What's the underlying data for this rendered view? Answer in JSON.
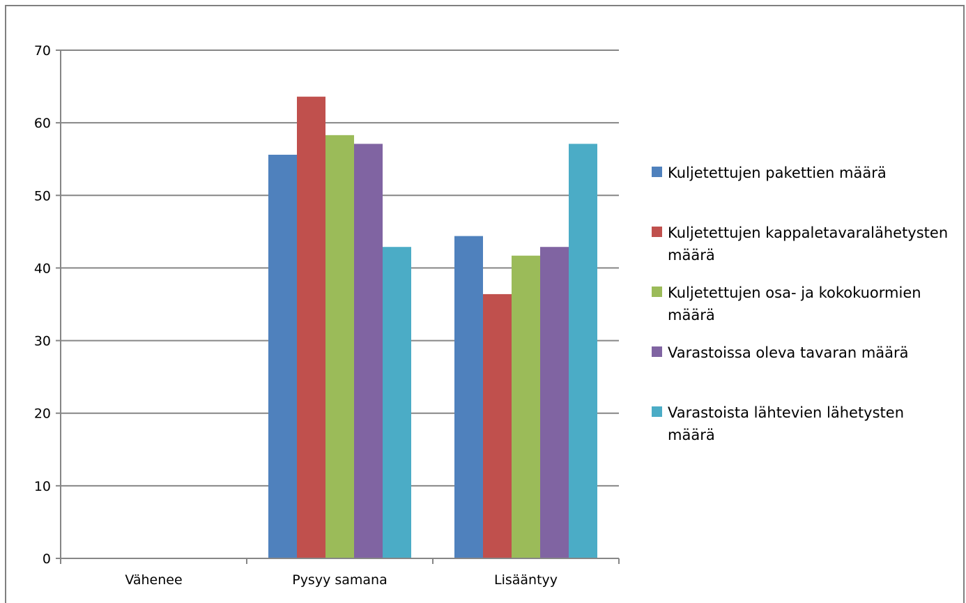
{
  "chart_data": {
    "type": "bar",
    "categories": [
      "Vähenee",
      "Pysyy samana",
      "Lisääntyy"
    ],
    "series": [
      {
        "name": "Kuljetettujen pakettien määrä",
        "color": "#4f81bd",
        "values": [
          0,
          55.6,
          44.4
        ]
      },
      {
        "name": "Kuljetettujen kappaletavaralähetysten määrä",
        "color": "#c0504d",
        "values": [
          0,
          63.6,
          36.4
        ]
      },
      {
        "name": "Kuljetettujen osa- ja kokokuormien määrä",
        "color": "#9bbb59",
        "values": [
          0,
          58.3,
          41.7
        ]
      },
      {
        "name": "Varastoissa oleva tavaran määrä",
        "color": "#8064a2",
        "values": [
          0,
          57.1,
          42.9
        ]
      },
      {
        "name": "Varastoista lähtevien lähetysten määrä",
        "color": "#4bacc6",
        "values": [
          0,
          42.9,
          57.1
        ]
      }
    ],
    "title": "",
    "xlabel": "",
    "ylabel": "",
    "ylim": [
      0,
      70
    ],
    "yticks": [
      0,
      10,
      20,
      30,
      40,
      50,
      60,
      70
    ],
    "grid": true,
    "legend_position": "right"
  }
}
